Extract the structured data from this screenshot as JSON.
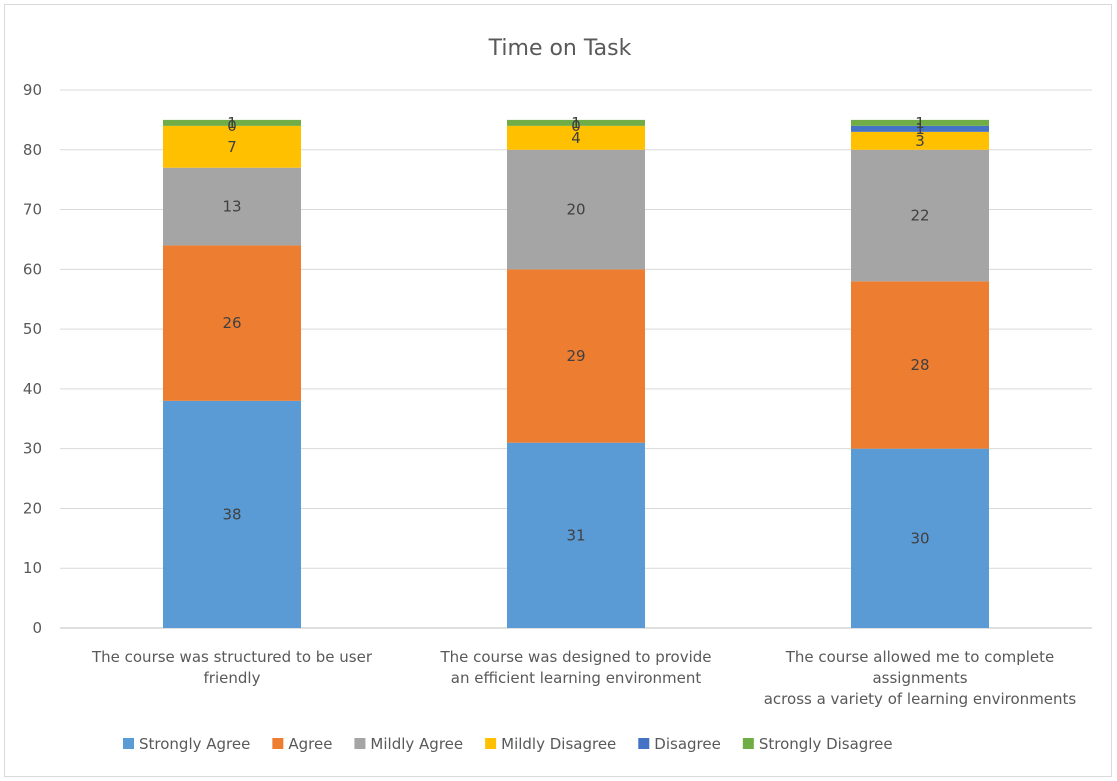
{
  "chart_data": {
    "type": "bar",
    "stacked": true,
    "title": "Time on Task",
    "xlabel": "",
    "ylabel": "",
    "ylim": [
      0,
      90
    ],
    "yticks": [
      0,
      10,
      20,
      30,
      40,
      50,
      60,
      70,
      80,
      90
    ],
    "grid": true,
    "legend_position": "bottom",
    "categories": [
      [
        "The course was structured to be user",
        "friendly"
      ],
      [
        "The course was designed to provide",
        "an efficient learning environment"
      ],
      [
        "The course allowed me to complete",
        "assignments",
        "across a variety of learning environments"
      ]
    ],
    "series": [
      {
        "name": "Strongly Agree",
        "color": "#5b9bd5",
        "values": [
          38,
          31,
          30
        ]
      },
      {
        "name": "Agree",
        "color": "#ed7d31",
        "values": [
          26,
          29,
          28
        ]
      },
      {
        "name": "Mildly Agree",
        "color": "#a5a5a5",
        "values": [
          13,
          20,
          22
        ]
      },
      {
        "name": "Mildly Disagree",
        "color": "#ffc000",
        "values": [
          7,
          4,
          3
        ]
      },
      {
        "name": "Disagree",
        "color": "#4472c4",
        "values": [
          0,
          0,
          1
        ]
      },
      {
        "name": "Strongly Disagree",
        "color": "#70ad47",
        "values": [
          1,
          1,
          1
        ]
      }
    ]
  }
}
